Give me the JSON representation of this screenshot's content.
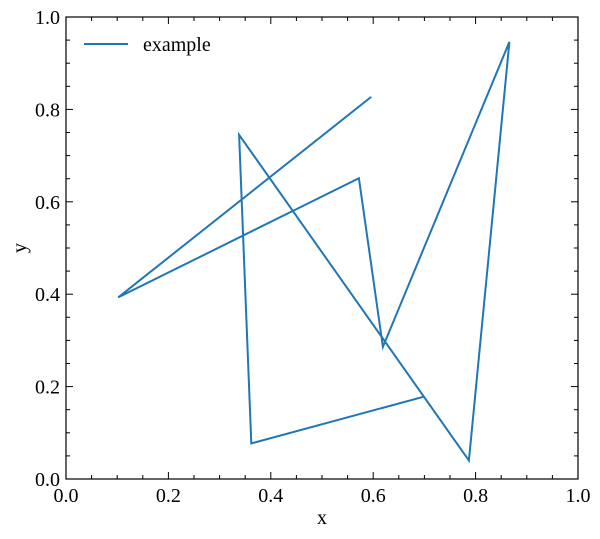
{
  "chart_data": {
    "type": "line",
    "xlabel": "x",
    "ylabel": "y",
    "xlim": [
      0.0,
      1.0
    ],
    "ylim": [
      0.0,
      1.0
    ],
    "xticks": [
      0.0,
      0.2,
      0.4,
      0.6,
      0.8,
      1.0
    ],
    "yticks": [
      0.0,
      0.2,
      0.4,
      0.6,
      0.8,
      1.0
    ],
    "xtick_labels": [
      "0.0",
      "0.2",
      "0.4",
      "0.6",
      "0.8",
      "1.0"
    ],
    "ytick_labels": [
      "0.0",
      "0.2",
      "0.4",
      "0.6",
      "0.8",
      "1.0"
    ],
    "grid": false,
    "legend_position": "top-left",
    "series": [
      {
        "name": "example",
        "color": "#1f77b4",
        "x": [
          0.596,
          0.102,
          0.572,
          0.619,
          0.866,
          0.787,
          0.338,
          0.362,
          0.698
        ],
        "y": [
          0.827,
          0.393,
          0.651,
          0.286,
          0.946,
          0.04,
          0.745,
          0.077,
          0.178
        ]
      }
    ]
  }
}
